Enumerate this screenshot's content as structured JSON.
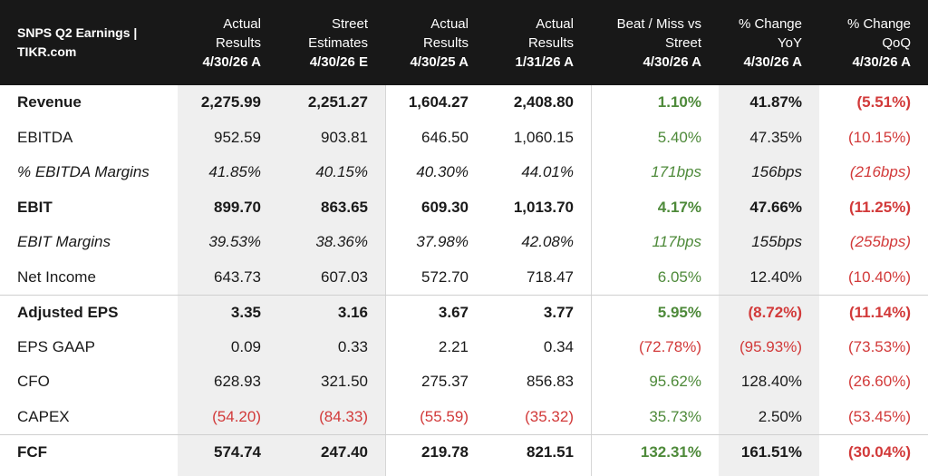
{
  "header": {
    "title": "SNPS Q2 Earnings | TIKR.com",
    "columns": [
      {
        "top": "Actual Results",
        "date": "4/30/26 A"
      },
      {
        "top": "Street Estimates",
        "date": "4/30/26 E"
      },
      {
        "top": "Actual Results",
        "date": "4/30/25 A"
      },
      {
        "top": "Actual Results",
        "date": "1/31/26 A"
      },
      {
        "top": "Beat / Miss vs Street",
        "date": "4/30/26 A"
      },
      {
        "top": "% Change YoY",
        "date": "4/30/26 A"
      },
      {
        "top": "% Change QoQ",
        "date": "4/30/26 A"
      }
    ]
  },
  "rows": [
    {
      "label": "Revenue",
      "style": "bold",
      "values": [
        "2,275.99",
        "2,251.27",
        "1,604.27",
        "2,408.80"
      ],
      "beat": "1.10%",
      "beat_tone": "pos",
      "yoy": "41.87%",
      "yoy_tone": "neu",
      "qoq": "(5.51%)",
      "qoq_tone": "neg"
    },
    {
      "label": "EBITDA",
      "style": "normal",
      "values": [
        "952.59",
        "903.81",
        "646.50",
        "1,060.15"
      ],
      "beat": "5.40%",
      "beat_tone": "pos",
      "yoy": "47.35%",
      "yoy_tone": "neu",
      "qoq": "(10.15%)",
      "qoq_tone": "neg"
    },
    {
      "label": "% EBITDA Margins",
      "style": "italic",
      "values": [
        "41.85%",
        "40.15%",
        "40.30%",
        "44.01%"
      ],
      "beat": "171bps",
      "beat_tone": "pos",
      "yoy": "156bps",
      "yoy_tone": "neu",
      "qoq": "(216bps)",
      "qoq_tone": "neg"
    },
    {
      "label": "EBIT",
      "style": "bold",
      "values": [
        "899.70",
        "863.65",
        "609.30",
        "1,013.70"
      ],
      "beat": "4.17%",
      "beat_tone": "pos",
      "yoy": "47.66%",
      "yoy_tone": "neu",
      "qoq": "(11.25%)",
      "qoq_tone": "neg"
    },
    {
      "label": "EBIT Margins",
      "style": "italic",
      "values": [
        "39.53%",
        "38.36%",
        "37.98%",
        "42.08%"
      ],
      "beat": "117bps",
      "beat_tone": "pos",
      "yoy": "155bps",
      "yoy_tone": "neu",
      "qoq": "(255bps)",
      "qoq_tone": "neg"
    },
    {
      "label": "Net Income",
      "style": "normal",
      "values": [
        "643.73",
        "607.03",
        "572.70",
        "718.47"
      ],
      "beat": "6.05%",
      "beat_tone": "pos",
      "yoy": "12.40%",
      "yoy_tone": "neu",
      "qoq": "(10.40%)",
      "qoq_tone": "neg"
    },
    {
      "label": "Adjusted EPS",
      "style": "bold",
      "values": [
        "3.35",
        "3.16",
        "3.67",
        "3.77"
      ],
      "beat": "5.95%",
      "beat_tone": "pos",
      "yoy": "(8.72%)",
      "yoy_tone": "neg",
      "qoq": "(11.14%)",
      "qoq_tone": "neg",
      "sep": true
    },
    {
      "label": "EPS GAAP",
      "style": "normal",
      "values": [
        "0.09",
        "0.33",
        "2.21",
        "0.34"
      ],
      "beat": "(72.78%)",
      "beat_tone": "neg",
      "yoy": "(95.93%)",
      "yoy_tone": "neg",
      "qoq": "(73.53%)",
      "qoq_tone": "neg"
    },
    {
      "label": "CFO",
      "style": "normal",
      "values": [
        "628.93",
        "321.50",
        "275.37",
        "856.83"
      ],
      "beat": "95.62%",
      "beat_tone": "pos",
      "yoy": "128.40%",
      "yoy_tone": "neu",
      "qoq": "(26.60%)",
      "qoq_tone": "neg"
    },
    {
      "label": "CAPEX",
      "style": "normal",
      "values": [
        "(54.20)",
        "(84.33)",
        "(55.59)",
        "(35.32)"
      ],
      "values_tone": "neg",
      "beat": "35.73%",
      "beat_tone": "pos",
      "yoy": "2.50%",
      "yoy_tone": "neu",
      "qoq": "(53.45%)",
      "qoq_tone": "neg"
    },
    {
      "label": "FCF",
      "style": "bold",
      "values": [
        "574.74",
        "247.40",
        "219.78",
        "821.51"
      ],
      "beat": "132.31%",
      "beat_tone": "pos",
      "yoy": "161.51%",
      "yoy_tone": "neu",
      "qoq": "(30.04%)",
      "qoq_tone": "neg",
      "sep": true
    }
  ],
  "colors": {
    "header_bg": "#181818",
    "positive": "#4e8a3a",
    "negative": "#d23a3a",
    "shade": "#efefef"
  }
}
